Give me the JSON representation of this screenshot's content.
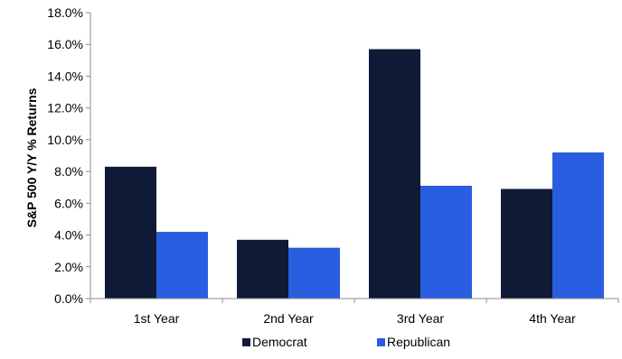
{
  "chart_data": {
    "type": "bar",
    "title": "",
    "xlabel": "",
    "ylabel": "S&P 500 Y/Y % Returns",
    "categories": [
      "1st Year",
      "2nd Year",
      "3rd Year",
      "4th Year"
    ],
    "series": [
      {
        "name": "Democrat",
        "color": "#0f1a36",
        "values": [
          8.3,
          3.7,
          15.7,
          6.9
        ]
      },
      {
        "name": "Republican",
        "color": "#2a5ee0",
        "values": [
          4.2,
          3.2,
          7.1,
          9.2
        ]
      }
    ],
    "ylim": [
      0,
      18
    ],
    "ytick_step": 2,
    "ytick_format": "0.0%",
    "yticks": [
      "0.0%",
      "2.0%",
      "4.0%",
      "6.0%",
      "8.0%",
      "10.0%",
      "12.0%",
      "14.0%",
      "16.0%",
      "18.0%"
    ],
    "grid": false,
    "legend_position": "bottom"
  }
}
